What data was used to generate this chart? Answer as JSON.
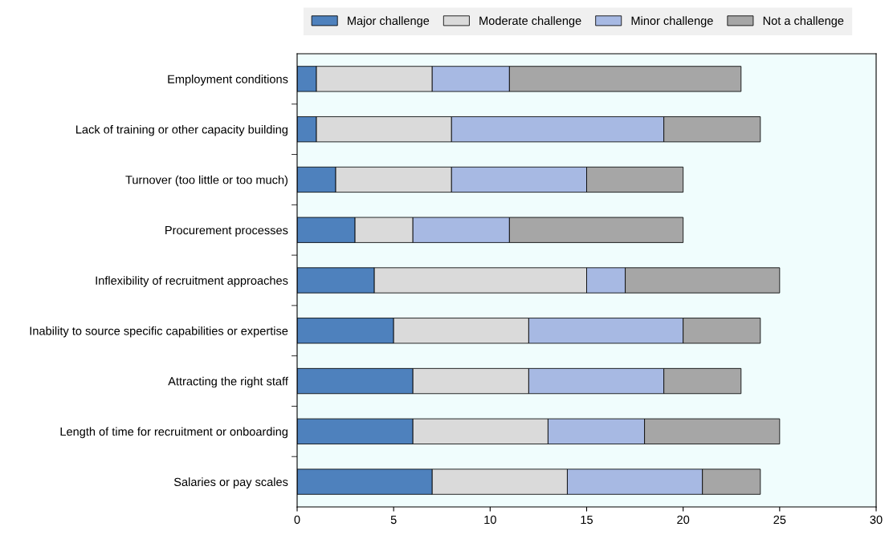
{
  "chart_data": {
    "type": "bar",
    "orientation": "horizontal",
    "stacked": true,
    "categories": [
      "Employment conditions",
      "Lack of training or other capacity building",
      "Turnover (too little or too much)",
      "Procurement processes",
      "Inflexibility of recruitment approaches",
      "Inability to source specific capabilities or expertise",
      "Attracting the right staff",
      "Length of time for recruitment or onboarding",
      "Salaries or pay scales"
    ],
    "series": [
      {
        "name": "Major challenge",
        "color": "#4e81bd",
        "values": [
          1,
          1,
          2,
          3,
          4,
          5,
          6,
          6,
          7
        ]
      },
      {
        "name": "Moderate challenge",
        "color": "#dadada",
        "values": [
          6,
          7,
          6,
          3,
          11,
          7,
          6,
          7,
          7
        ]
      },
      {
        "name": "Minor challenge",
        "color": "#a7b9e3",
        "values": [
          4,
          11,
          7,
          5,
          2,
          8,
          7,
          5,
          7
        ]
      },
      {
        "name": "Not a challenge",
        "color": "#a6a6a6",
        "values": [
          12,
          5,
          5,
          9,
          8,
          4,
          4,
          7,
          3
        ]
      }
    ],
    "xlim": [
      0,
      30
    ],
    "xticks": [
      0,
      5,
      10,
      15,
      20,
      25,
      30
    ],
    "grid": false,
    "legend": "top"
  }
}
